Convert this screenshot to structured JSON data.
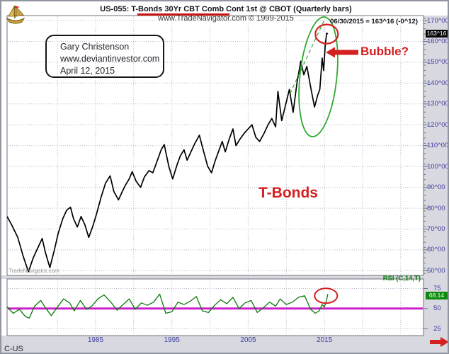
{
  "header": {
    "symbol_title": "US-055:  T-Bonds 30Yr CBT Comb Cont 1st @ CBOT  (Quarterly bars)",
    "site_line": "www.TradeNavigator.com © 1999-2015",
    "quote_readout": "06/30/2015 = 163^16 (-0^12)"
  },
  "info_box": {
    "line1": "Gary Christenson",
    "line2": "www.deviantinvestor.com",
    "line3": "April 12, 2015"
  },
  "labels": {
    "bubble": "Bubble?",
    "series": "T-Bonds",
    "watermark": "TradeNavigator.com",
    "symbol_short": "C-US",
    "rsi_indicator": "RSI (C,14,T)",
    "price_badge": "163^16",
    "rsi_badge": "68.14"
  },
  "axes": {
    "price_labels": [
      {
        "text": "170^00",
        "v": 170
      },
      {
        "text": "160^00",
        "v": 160
      },
      {
        "text": "150^00",
        "v": 150
      },
      {
        "text": "140^00",
        "v": 140
      },
      {
        "text": "130^00",
        "v": 130
      },
      {
        "text": "120^00",
        "v": 120
      },
      {
        "text": "110^00",
        "v": 110
      },
      {
        "text": "100^00",
        "v": 100
      },
      {
        "text": "90^00",
        "v": 90
      },
      {
        "text": "80^00",
        "v": 80
      },
      {
        "text": "70^00",
        "v": 70
      },
      {
        "text": "60^00",
        "v": 60
      },
      {
        "text": "50^00",
        "v": 50
      }
    ],
    "rsi_labels": [
      {
        "text": "75",
        "v": 75
      },
      {
        "text": "50",
        "v": 50
      },
      {
        "text": "25",
        "v": 25
      }
    ],
    "x_labels": [
      {
        "text": "1985",
        "year": 1985
      },
      {
        "text": "1995",
        "year": 1995
      },
      {
        "text": "2005",
        "year": 2005
      },
      {
        "text": "2015",
        "year": 2015
      }
    ]
  },
  "colors": {
    "price_line": "#000000",
    "rsi_line": "#0a7a0a",
    "rsi_midline": "#cc22cc",
    "annotation_red": "#d42020",
    "annotation_green": "#2faa2f",
    "grid": "#b9b9cb",
    "axis_label": "#3f3fa0",
    "title_underline": "#cc1111",
    "price_badge_bg": "#050505",
    "rsi_badge_bg": "#0c8a0c",
    "logo_gold": "#c9a23a"
  },
  "chart_data": {
    "type": "line",
    "title": "US-055: T-Bonds 30Yr CBT Comb Cont 1st @ CBOT (Quarterly bars)",
    "x_unit": "year (quarterly bars)",
    "xlim": [
      1973.4,
      2027.5
    ],
    "x_ticks": [
      1985,
      1995,
      2005,
      2015
    ],
    "grid_years": [
      1980,
      1985,
      1990,
      1995,
      2000,
      2005,
      2010,
      2015,
      2020,
      2025
    ],
    "panels": [
      {
        "name": "price",
        "ylim": [
          47,
          172
        ],
        "grid_step": 10,
        "last_date": "06/30/2015",
        "last_close": "163^16",
        "last_change": "-0^12",
        "series": [
          {
            "name": "T-Bonds 30Yr CBT Comb Cont 1st (quarterly close)",
            "points": [
              [
                1973.4,
                76
              ],
              [
                1974.0,
                72
              ],
              [
                1974.8,
                66
              ],
              [
                1975.5,
                57
              ],
              [
                1976.2,
                49.5
              ],
              [
                1976.8,
                56
              ],
              [
                1977.3,
                60
              ],
              [
                1978.0,
                65.5
              ],
              [
                1978.4,
                59
              ],
              [
                1979.0,
                51.5
              ],
              [
                1979.6,
                60
              ],
              [
                1980.1,
                68
              ],
              [
                1980.7,
                75
              ],
              [
                1981.2,
                79
              ],
              [
                1981.7,
                80.5
              ],
              [
                1982.1,
                75
              ],
              [
                1982.6,
                71
              ],
              [
                1983.1,
                76
              ],
              [
                1983.6,
                72
              ],
              [
                1984.1,
                66
              ],
              [
                1984.6,
                71
              ],
              [
                1985.1,
                77
              ],
              [
                1985.7,
                85
              ],
              [
                1986.3,
                92
              ],
              [
                1986.9,
                95.5
              ],
              [
                1987.4,
                88
              ],
              [
                1988.0,
                84
              ],
              [
                1988.5,
                88
              ],
              [
                1988.9,
                91
              ],
              [
                1989.4,
                94
              ],
              [
                1989.8,
                97.5
              ],
              [
                1990.3,
                93
              ],
              [
                1990.9,
                90
              ],
              [
                1991.4,
                95
              ],
              [
                1992.0,
                98
              ],
              [
                1992.5,
                97
              ],
              [
                1993.0,
                102
              ],
              [
                1993.6,
                108
              ],
              [
                1994.0,
                110.5
              ],
              [
                1994.6,
                100
              ],
              [
                1995.1,
                94
              ],
              [
                1995.7,
                101
              ],
              [
                1996.1,
                105
              ],
              [
                1996.6,
                108
              ],
              [
                1997.0,
                103
              ],
              [
                1997.5,
                107
              ],
              [
                1998.0,
                111
              ],
              [
                1998.6,
                115
              ],
              [
                1999.1,
                108
              ],
              [
                1999.7,
                100
              ],
              [
                2000.2,
                97
              ],
              [
                2000.7,
                103
              ],
              [
                2001.2,
                108
              ],
              [
                2001.6,
                112
              ],
              [
                2002.0,
                107
              ],
              [
                2002.5,
                113
              ],
              [
                2003.0,
                118
              ],
              [
                2003.4,
                110
              ],
              [
                2003.9,
                113
              ],
              [
                2004.5,
                116
              ],
              [
                2005.0,
                118
              ],
              [
                2005.5,
                120
              ],
              [
                2006.0,
                114
              ],
              [
                2006.5,
                112
              ],
              [
                2007.1,
                116
              ],
              [
                2007.6,
                120
              ],
              [
                2008.1,
                123
              ],
              [
                2008.6,
                119
              ],
              [
                2008.9,
                136
              ],
              [
                2009.4,
                122
              ],
              [
                2010.0,
                131
              ],
              [
                2010.4,
                137
              ],
              [
                2010.9,
                126
              ],
              [
                2011.4,
                140
              ],
              [
                2011.9,
                150.5
              ],
              [
                2012.3,
                144
              ],
              [
                2012.7,
                148
              ],
              [
                2013.2,
                138
              ],
              [
                2013.7,
                128.5
              ],
              [
                2014.1,
                134
              ],
              [
                2014.4,
                137
              ],
              [
                2014.7,
                152
              ],
              [
                2014.9,
                146
              ],
              [
                2015.1,
                158
              ],
              [
                2015.3,
                164
              ],
              [
                2015.45,
                163.5
              ]
            ]
          }
        ]
      },
      {
        "name": "rsi",
        "label": "RSI (C,14,T)",
        "ylim": [
          17,
          88
        ],
        "midline": 50,
        "last_value": 68.14,
        "series": [
          {
            "name": "RSI (C,14,T)",
            "points": [
              [
                1973.4,
                52
              ],
              [
                1974.2,
                44
              ],
              [
                1975.0,
                49
              ],
              [
                1975.8,
                40
              ],
              [
                1976.3,
                38
              ],
              [
                1977.0,
                53
              ],
              [
                1977.8,
                60
              ],
              [
                1978.5,
                50
              ],
              [
                1979.2,
                41
              ],
              [
                1980.0,
                52
              ],
              [
                1980.8,
                62
              ],
              [
                1981.6,
                57
              ],
              [
                1982.2,
                47
              ],
              [
                1983.0,
                60
              ],
              [
                1983.8,
                49
              ],
              [
                1984.5,
                53
              ],
              [
                1985.3,
                62
              ],
              [
                1986.1,
                67
              ],
              [
                1987.0,
                58
              ],
              [
                1987.8,
                48
              ],
              [
                1988.6,
                55
              ],
              [
                1989.4,
                62
              ],
              [
                1990.2,
                49
              ],
              [
                1991.0,
                57
              ],
              [
                1991.8,
                54
              ],
              [
                1992.6,
                58
              ],
              [
                1993.4,
                68
              ],
              [
                1994.2,
                44
              ],
              [
                1995.0,
                46
              ],
              [
                1995.8,
                58
              ],
              [
                1996.6,
                55
              ],
              [
                1997.4,
                59
              ],
              [
                1998.2,
                65
              ],
              [
                1999.0,
                47
              ],
              [
                1999.8,
                45
              ],
              [
                2000.6,
                54
              ],
              [
                2001.4,
                61
              ],
              [
                2002.2,
                56
              ],
              [
                2003.0,
                64
              ],
              [
                2003.8,
                50
              ],
              [
                2004.6,
                57
              ],
              [
                2005.4,
                60
              ],
              [
                2006.2,
                45
              ],
              [
                2007.0,
                51
              ],
              [
                2007.8,
                58
              ],
              [
                2008.6,
                53
              ],
              [
                2009.2,
                62
              ],
              [
                2010.0,
                55
              ],
              [
                2010.8,
                58
              ],
              [
                2011.6,
                64
              ],
              [
                2012.4,
                66
              ],
              [
                2013.2,
                49
              ],
              [
                2013.8,
                44
              ],
              [
                2014.3,
                47
              ],
              [
                2014.7,
                55
              ],
              [
                2015.0,
                52
              ],
              [
                2015.3,
                61
              ],
              [
                2015.45,
                68.14
              ]
            ]
          }
        ]
      }
    ],
    "annotations": {
      "bubble_ellipse": {
        "center_year": 2014.2,
        "center_price": 143
      },
      "trendline": {
        "from": [
          2010.5,
          135
        ],
        "to": [
          2014.95,
          170
        ]
      },
      "price_circle": {
        "year": 2015.3,
        "price": 163.5
      },
      "rsi_circle": {
        "year": 2015.2,
        "rsi": 66
      }
    }
  }
}
